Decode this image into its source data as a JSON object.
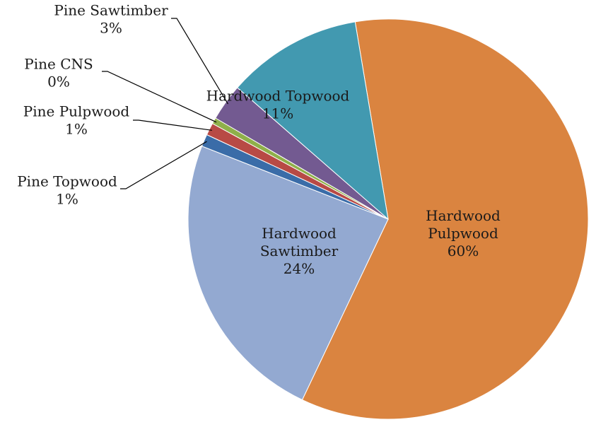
{
  "chart_data": {
    "type": "pie",
    "title": "",
    "slices": [
      {
        "label": "Hardwood Pulpwood",
        "value": 60,
        "pct_label": "60%",
        "color": "#DA8440"
      },
      {
        "label": "Hardwood Sawtimber",
        "value": 24,
        "pct_label": "24%",
        "color": "#93A9D1"
      },
      {
        "label": "Pine Topwood",
        "value": 1,
        "pct_label": "1%",
        "color": "#3A6CA8"
      },
      {
        "label": "Pine Pulpwood",
        "value": 1,
        "pct_label": "1%",
        "color": "#B84A45"
      },
      {
        "label": "Pine CNS",
        "value": 0.5,
        "pct_label": "0%",
        "color": "#8FB04A"
      },
      {
        "label": "Pine Sawtimber",
        "value": 3,
        "pct_label": "3%",
        "color": "#735A91"
      },
      {
        "label": "Hardwood Topwood",
        "value": 11,
        "pct_label": "11%",
        "color": "#4299B0"
      }
    ],
    "legend": "none"
  }
}
